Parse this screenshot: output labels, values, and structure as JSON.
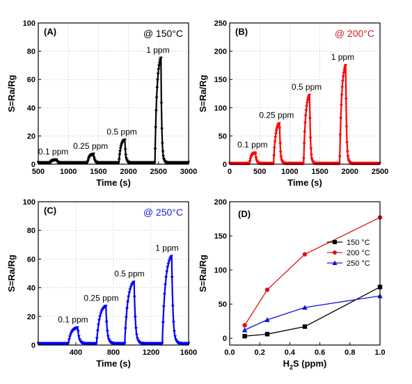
{
  "chart_data": [
    {
      "id": "A",
      "type": "line",
      "panel_label": "(A)",
      "temperature_label": "@ 150°C",
      "temperature_color": "#000000",
      "series_color": "#000000",
      "xlabel": "Time (s)",
      "ylabel": "S=Ra/Rg",
      "xlim": [
        500,
        3000
      ],
      "ylim": [
        0,
        100
      ],
      "xticks": [
        500,
        1000,
        1500,
        2000,
        2500,
        3000
      ],
      "yticks": [
        0,
        20,
        40,
        60,
        80,
        100
      ],
      "grid": true,
      "baseline": 1,
      "pulses": [
        {
          "label": "0.1 ppm",
          "start": 700,
          "end": 800,
          "peak": 3
        },
        {
          "label": "0.25 ppm",
          "start": 1320,
          "end": 1420,
          "peak": 7
        },
        {
          "label": "0.5 ppm",
          "start": 1840,
          "end": 1940,
          "peak": 17
        },
        {
          "label": "1 ppm",
          "start": 2440,
          "end": 2540,
          "peak": 75
        }
      ]
    },
    {
      "id": "B",
      "type": "line",
      "panel_label": "(B)",
      "temperature_label": "@ 200°C",
      "temperature_color": "#d11f1f",
      "series_color": "#ff0000",
      "xlabel": "Time (s)",
      "ylabel": "S=Ra/Rg",
      "xlim": [
        0,
        2500
      ],
      "ylim": [
        0,
        250
      ],
      "xticks": [
        0,
        500,
        1000,
        1500,
        2000,
        2500
      ],
      "yticks": [
        0,
        50,
        100,
        150,
        200,
        250
      ],
      "grid": true,
      "baseline": 1,
      "pulses": [
        {
          "label": "0.1 ppm",
          "start": 330,
          "end": 430,
          "peak": 20
        },
        {
          "label": "0.25 ppm",
          "start": 730,
          "end": 830,
          "peak": 72
        },
        {
          "label": "0.5 ppm",
          "start": 1230,
          "end": 1330,
          "peak": 122
        },
        {
          "label": "1 ppm",
          "start": 1830,
          "end": 1930,
          "peak": 175
        }
      ]
    },
    {
      "id": "C",
      "type": "line",
      "panel_label": "(C)",
      "temperature_label": "@ 250°C",
      "temperature_color": "#1f1fd1",
      "series_color": "#0000ff",
      "xlabel": "Time (s)",
      "ylabel": "S=Ra/Rg",
      "xlim": [
        0,
        1600
      ],
      "ylim": [
        0,
        100
      ],
      "xticks": [
        400,
        800,
        1200,
        1600
      ],
      "yticks": [
        0,
        20,
        40,
        60,
        80,
        100
      ],
      "grid": true,
      "baseline": 1,
      "pulses": [
        {
          "label": "0.1 ppm",
          "start": 320,
          "end": 420,
          "peak": 12
        },
        {
          "label": "0.25 ppm",
          "start": 620,
          "end": 720,
          "peak": 27
        },
        {
          "label": "0.5 ppm",
          "start": 920,
          "end": 1020,
          "peak": 44
        },
        {
          "label": "1 ppm",
          "start": 1320,
          "end": 1420,
          "peak": 62
        }
      ]
    },
    {
      "id": "D",
      "type": "line",
      "panel_label": "(D)",
      "xlabel": "H2S (ppm)",
      "xlabel_parts": [
        "H",
        "2",
        "S (ppm)"
      ],
      "ylabel": "S=Ra/Rg",
      "xlim": [
        0,
        1.0
      ],
      "ylim": [
        -10,
        200
      ],
      "xticks": [
        0.0,
        0.2,
        0.4,
        0.6,
        0.8,
        1.0
      ],
      "xtick_labels": [
        "0.0",
        "0.2",
        "0.4",
        "0.6",
        "0.8",
        "1.0"
      ],
      "yticks": [
        0,
        50,
        100,
        150,
        200
      ],
      "grid": false,
      "legend_position": "center-right",
      "x": [
        0.1,
        0.25,
        0.5,
        1.0
      ],
      "series": [
        {
          "name": "150 °C",
          "color": "#000000",
          "marker": "square",
          "values": [
            3,
            6,
            17,
            75
          ]
        },
        {
          "name": "200 °C",
          "color": "#e01010",
          "marker": "circle",
          "values": [
            19,
            71,
            123,
            177
          ]
        },
        {
          "name": "250 °C",
          "color": "#1010e0",
          "marker": "triangle",
          "values": [
            12,
            27,
            45,
            62
          ]
        }
      ]
    }
  ]
}
